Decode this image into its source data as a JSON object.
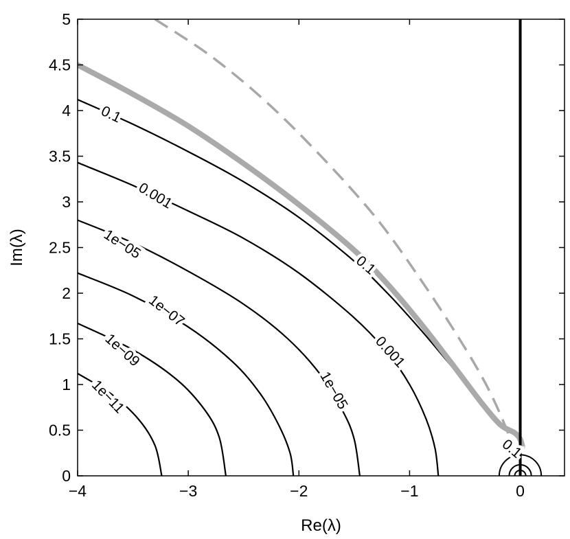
{
  "chart_data": {
    "type": "line",
    "xlabel": "Re(λ)",
    "ylabel": "Im(λ)",
    "xlim": [
      -4,
      0.4
    ],
    "ylim": [
      0,
      5
    ],
    "xticks": [
      -4,
      -3,
      -2,
      -1,
      0
    ],
    "xtick_labels": [
      "−4",
      "−3",
      "−2",
      "−1",
      "0"
    ],
    "yticks": [
      0,
      0.5,
      1,
      1.5,
      2,
      2.5,
      3,
      3.5,
      4,
      4.5,
      5
    ],
    "ytick_labels": [
      "0",
      "0.5",
      "1",
      "1.5",
      "2",
      "2.5",
      "3",
      "3.5",
      "4",
      "4.5",
      "5"
    ],
    "grid": false,
    "colors": {
      "contour": "#000000",
      "thick_gray": "#aaaaaa",
      "dashed_gray": "#a8a8a8"
    },
    "contours": [
      {
        "level": "0.1",
        "points": [
          [
            -4,
            4.12
          ],
          [
            -3.5,
            3.85
          ],
          [
            -3.0,
            3.55
          ],
          [
            -2.5,
            3.22
          ],
          [
            -2.0,
            2.83
          ],
          [
            -1.5,
            2.35
          ],
          [
            -1.2,
            2.0
          ],
          [
            -0.9,
            1.6
          ],
          [
            -0.6,
            1.17
          ],
          [
            -0.3,
            0.75
          ],
          [
            -0.15,
            0.55
          ],
          [
            -0.05,
            0.46
          ],
          [
            0.0,
            0.38
          ],
          [
            0.01,
            0.3
          ]
        ],
        "labels": [
          {
            "x": -3.7,
            "y": 3.95,
            "angle": 26
          },
          {
            "x": -1.4,
            "y": 2.3,
            "angle": 40
          },
          {
            "x": -0.08,
            "y": 0.29,
            "angle": 40
          }
        ]
      },
      {
        "level": "0.001",
        "points": [
          [
            -4,
            3.43
          ],
          [
            -3.5,
            3.18
          ],
          [
            -3.0,
            2.9
          ],
          [
            -2.5,
            2.6
          ],
          [
            -2.0,
            2.22
          ],
          [
            -1.5,
            1.73
          ],
          [
            -1.2,
            1.35
          ],
          [
            -1.0,
            1.0
          ],
          [
            -0.85,
            0.62
          ],
          [
            -0.77,
            0.3
          ],
          [
            -0.74,
            0.0
          ]
        ],
        "labels": [
          {
            "x": -3.3,
            "y": 3.06,
            "angle": 31
          },
          {
            "x": -1.18,
            "y": 1.35,
            "angle": 48
          }
        ]
      },
      {
        "level": "1e−05",
        "points": [
          [
            -4,
            2.8
          ],
          [
            -3.5,
            2.55
          ],
          [
            -3.0,
            2.24
          ],
          [
            -2.5,
            1.88
          ],
          [
            -2.1,
            1.5
          ],
          [
            -1.8,
            1.1
          ],
          [
            -1.6,
            0.7
          ],
          [
            -1.5,
            0.4
          ],
          [
            -1.45,
            0.0
          ]
        ],
        "labels": [
          {
            "x": -3.6,
            "y": 2.53,
            "angle": 33
          },
          {
            "x": -1.69,
            "y": 0.93,
            "angle": 60
          }
        ]
      },
      {
        "level": "1e−07",
        "points": [
          [
            -4,
            2.22
          ],
          [
            -3.5,
            1.97
          ],
          [
            -3.0,
            1.63
          ],
          [
            -2.6,
            1.25
          ],
          [
            -2.35,
            0.9
          ],
          [
            -2.18,
            0.55
          ],
          [
            -2.08,
            0.25
          ],
          [
            -2.05,
            0.0
          ]
        ],
        "labels": [
          {
            "x": -3.2,
            "y": 1.8,
            "angle": 38
          }
        ]
      },
      {
        "level": "1e−09",
        "points": [
          [
            -4,
            1.67
          ],
          [
            -3.5,
            1.38
          ],
          [
            -3.1,
            1.05
          ],
          [
            -2.85,
            0.72
          ],
          [
            -2.72,
            0.42
          ],
          [
            -2.66,
            0.0
          ]
        ],
        "labels": [
          {
            "x": -3.6,
            "y": 1.37,
            "angle": 42
          }
        ]
      },
      {
        "level": "1e−11",
        "points": [
          [
            -4,
            1.12
          ],
          [
            -3.7,
            0.9
          ],
          [
            -3.45,
            0.62
          ],
          [
            -3.3,
            0.33
          ],
          [
            -3.24,
            0.0
          ]
        ],
        "labels": [
          {
            "x": -3.73,
            "y": 0.86,
            "angle": 46
          }
        ]
      }
    ],
    "thick_gray_curve": [
      [
        -4,
        4.5
      ],
      [
        -3.5,
        4.18
      ],
      [
        -3.0,
        3.83
      ],
      [
        -2.5,
        3.42
      ],
      [
        -2.0,
        2.97
      ],
      [
        -1.5,
        2.47
      ],
      [
        -1.2,
        2.1
      ],
      [
        -0.9,
        1.67
      ],
      [
        -0.6,
        1.2
      ],
      [
        -0.35,
        0.8
      ],
      [
        -0.18,
        0.56
      ],
      [
        -0.05,
        0.47
      ],
      [
        0.0,
        0.4
      ],
      [
        0.02,
        0.32
      ]
    ],
    "dashed_gray_curve": [
      [
        -3.3,
        5.0
      ],
      [
        -2.8,
        4.6
      ],
      [
        -2.3,
        4.1
      ],
      [
        -1.8,
        3.5
      ],
      [
        -1.3,
        2.82
      ],
      [
        -0.9,
        2.15
      ],
      [
        -0.55,
        1.5
      ],
      [
        -0.3,
        0.98
      ],
      [
        -0.12,
        0.5
      ],
      [
        -0.04,
        0.2
      ]
    ],
    "vertical_line_x": 0.0,
    "origin_circles_radius": [
      0.05,
      0.1,
      0.19
    ]
  }
}
